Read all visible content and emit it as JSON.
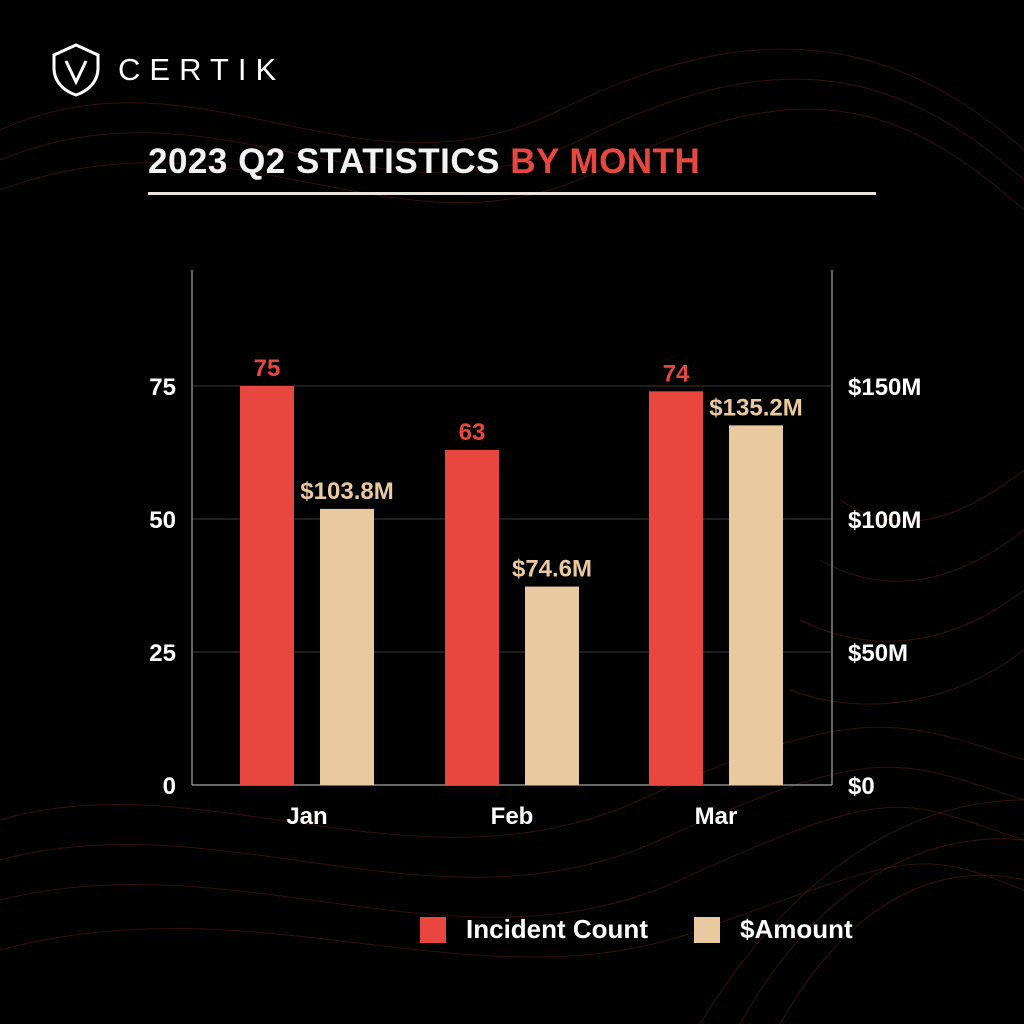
{
  "brand": {
    "logo_icon": "certik-shield-logo",
    "name": "CERTIK"
  },
  "header": {
    "title_main": "2023 Q2 STATISTICS",
    "title_accent": "BY MONTH"
  },
  "colors": {
    "background": "#000000",
    "incident": "#e8473f",
    "amount": "#e9c9a0",
    "text": "#ffffff",
    "gridline": "#3a3a3a"
  },
  "chart_data": {
    "type": "bar",
    "categories": [
      "Jan",
      "Feb",
      "Mar"
    ],
    "series": [
      {
        "name": "Incident Count",
        "axis": "left",
        "values": [
          75,
          63,
          74
        ],
        "labels": [
          "75",
          "63",
          "74"
        ],
        "color": "#e8473f"
      },
      {
        "name": "$Amount",
        "axis": "right",
        "values": [
          103.8,
          74.6,
          135.2
        ],
        "labels": [
          "$103.8M",
          "$74.6M",
          "$135.2M"
        ],
        "color": "#e9c9a0"
      }
    ],
    "y_left": {
      "range": [
        0,
        75
      ],
      "ticks": [
        0,
        25,
        50,
        75
      ],
      "tick_labels": [
        "0",
        "25",
        "50",
        "75"
      ]
    },
    "y_right": {
      "range": [
        0,
        150
      ],
      "ticks": [
        0,
        50,
        100,
        150
      ],
      "tick_labels": [
        "$0",
        "$50M",
        "$100M",
        "$150M"
      ]
    },
    "grid": true,
    "legend_position": "bottom-right"
  }
}
